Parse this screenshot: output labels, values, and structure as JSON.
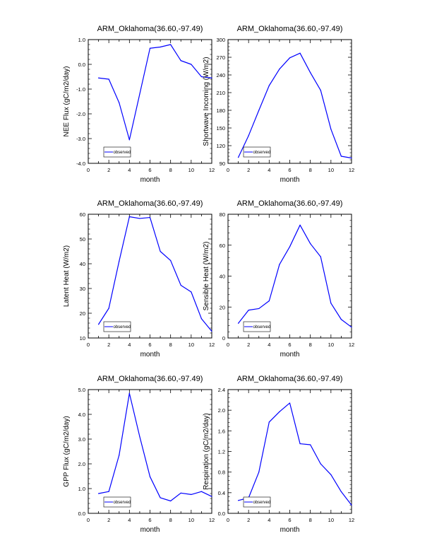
{
  "chart_data": [
    {
      "type": "line",
      "title": "ARM_Oklahoma(36.60,-97.49)",
      "xlabel": "month",
      "ylabel": "NEE Flux (gC/m2/day)",
      "xlim": [
        0,
        12
      ],
      "ylim": [
        -4.0,
        1.0
      ],
      "xticks": [
        0,
        2,
        4,
        6,
        8,
        10,
        12
      ],
      "xtick_labels": [
        "0",
        "2",
        "4",
        "6",
        "8",
        "10",
        "12"
      ],
      "yticks": [
        -4.0,
        -3.0,
        -2.0,
        -1.0,
        0.0,
        1.0
      ],
      "ytick_labels": [
        "-4.0",
        "-3.0",
        "-2.0",
        "-1.0",
        "0.0",
        "1.0"
      ],
      "grid": false,
      "legend_position": "bottom-left",
      "series": [
        {
          "name": "observed",
          "color": "#0000ff",
          "x": [
            1,
            2,
            3,
            4,
            5,
            6,
            7,
            8,
            9,
            10,
            11,
            12
          ],
          "values": [
            -0.55,
            -0.6,
            -1.55,
            -3.05,
            -1.2,
            0.65,
            0.7,
            0.8,
            0.15,
            0.0,
            -0.5,
            -0.55
          ]
        }
      ]
    },
    {
      "type": "line",
      "title": "ARM_Oklahoma(36.60,-97.49)",
      "xlabel": "month",
      "ylabel": "Shortwave Incoming (W/m2)",
      "xlim": [
        0,
        12
      ],
      "ylim": [
        90,
        300
      ],
      "xticks": [
        0,
        2,
        4,
        6,
        8,
        10,
        12
      ],
      "xtick_labels": [
        "0",
        "2",
        "4",
        "6",
        "8",
        "10",
        "12"
      ],
      "yticks": [
        90,
        120,
        150,
        180,
        210,
        240,
        270,
        300
      ],
      "ytick_labels": [
        "90",
        "120",
        "150",
        "180",
        "210",
        "240",
        "270",
        "300"
      ],
      "grid": false,
      "legend_position": "bottom-left",
      "series": [
        {
          "name": "observed",
          "color": "#0000ff",
          "x": [
            1,
            2,
            3,
            4,
            5,
            6,
            7,
            8,
            9,
            10,
            11,
            12
          ],
          "values": [
            100,
            137,
            180,
            222,
            250,
            269,
            277,
            244,
            214,
            148,
            102,
            99
          ]
        }
      ]
    },
    {
      "type": "line",
      "title": "ARM_Oklahoma(36.60,-97.49)",
      "xlabel": "month",
      "ylabel": "Latent Heat (W/m2)",
      "xlim": [
        0,
        12
      ],
      "ylim": [
        10,
        60
      ],
      "xticks": [
        0,
        2,
        4,
        6,
        8,
        10,
        12
      ],
      "xtick_labels": [
        "0",
        "2",
        "4",
        "6",
        "8",
        "10",
        "12"
      ],
      "yticks": [
        10,
        20,
        30,
        40,
        50,
        60
      ],
      "ytick_labels": [
        "10",
        "20",
        "30",
        "40",
        "50",
        "60"
      ],
      "grid": false,
      "legend_position": "bottom-left",
      "series": [
        {
          "name": "observed",
          "color": "#0000ff",
          "x": [
            1,
            2,
            3,
            4,
            5,
            6,
            7,
            8,
            9,
            10,
            11,
            12
          ],
          "values": [
            15.5,
            22.0,
            41.0,
            59.0,
            58.3,
            58.7,
            45.0,
            41.3,
            31.3,
            28.6,
            17.8,
            12.7
          ]
        }
      ]
    },
    {
      "type": "line",
      "title": "ARM_Oklahoma(36.60,-97.49)",
      "xlabel": "month",
      "ylabel": "Sensible Heat (W/m2)",
      "xlim": [
        0,
        12
      ],
      "ylim": [
        0,
        80
      ],
      "xticks": [
        0,
        2,
        4,
        6,
        8,
        10,
        12
      ],
      "xtick_labels": [
        "0",
        "2",
        "4",
        "6",
        "8",
        "10",
        "12"
      ],
      "yticks": [
        0,
        20,
        40,
        60,
        80
      ],
      "ytick_labels": [
        "0",
        "20",
        "40",
        "60",
        "80"
      ],
      "grid": false,
      "legend_position": "bottom-left",
      "series": [
        {
          "name": "observed",
          "color": "#0000ff",
          "x": [
            1,
            2,
            3,
            4,
            5,
            6,
            7,
            8,
            9,
            10,
            11,
            12
          ],
          "values": [
            9.5,
            18.0,
            19.0,
            24.0,
            47.5,
            59.0,
            73.0,
            61.0,
            52.5,
            22.5,
            12.0,
            7.0
          ]
        }
      ]
    },
    {
      "type": "line",
      "title": "ARM_Oklahoma(36.60,-97.49)",
      "xlabel": "month",
      "ylabel": "GPP Flux (gC/m2/day)",
      "xlim": [
        0,
        12
      ],
      "ylim": [
        0.0,
        5.0
      ],
      "xticks": [
        0,
        2,
        4,
        6,
        8,
        10,
        12
      ],
      "xtick_labels": [
        "0",
        "2",
        "4",
        "6",
        "8",
        "10",
        "12"
      ],
      "yticks": [
        0.0,
        1.0,
        2.0,
        3.0,
        4.0,
        5.0
      ],
      "ytick_labels": [
        "0.0",
        "1.0",
        "2.0",
        "3.0",
        "4.0",
        "5.0"
      ],
      "grid": false,
      "legend_position": "bottom-left",
      "series": [
        {
          "name": "observed",
          "color": "#0000ff",
          "x": [
            1,
            2,
            3,
            4,
            5,
            6,
            7,
            8,
            9,
            10,
            11,
            12
          ],
          "values": [
            0.8,
            0.88,
            2.35,
            4.85,
            3.1,
            1.48,
            0.63,
            0.5,
            0.82,
            0.76,
            0.88,
            0.68
          ]
        }
      ]
    },
    {
      "type": "line",
      "title": "ARM_Oklahoma(36.60,-97.49)",
      "xlabel": "month",
      "ylabel": "Respiration (gC/m2/day)",
      "xlim": [
        0,
        12
      ],
      "ylim": [
        0.0,
        2.4
      ],
      "xticks": [
        0,
        2,
        4,
        6,
        8,
        10,
        12
      ],
      "xtick_labels": [
        "0",
        "2",
        "4",
        "6",
        "8",
        "10",
        "12"
      ],
      "yticks": [
        0.0,
        0.4,
        0.8,
        1.2,
        1.6,
        2.0,
        2.4
      ],
      "ytick_labels": [
        "0.0",
        "0.4",
        "0.8",
        "1.2",
        "1.6",
        "2.0",
        "2.4"
      ],
      "grid": false,
      "legend_position": "bottom-left",
      "series": [
        {
          "name": "observed",
          "color": "#0000ff",
          "x": [
            1,
            2,
            3,
            4,
            5,
            6,
            7,
            8,
            9,
            10,
            11,
            12
          ],
          "values": [
            0.25,
            0.3,
            0.8,
            1.77,
            1.97,
            2.14,
            1.35,
            1.33,
            0.96,
            0.75,
            0.42,
            0.16
          ]
        }
      ]
    }
  ]
}
